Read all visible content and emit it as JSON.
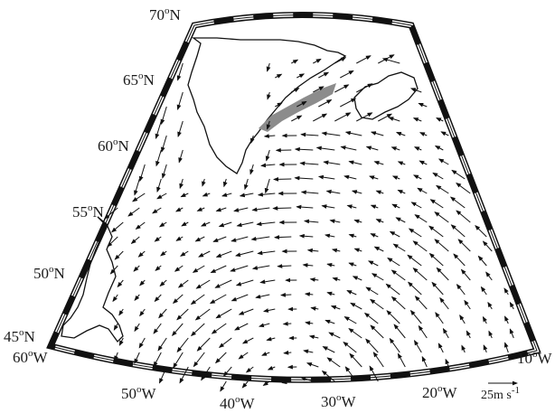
{
  "map": {
    "lat_labels": [
      {
        "deg": "70",
        "sup": "o",
        "hemi": "N"
      },
      {
        "deg": "65",
        "sup": "o",
        "hemi": "N"
      },
      {
        "deg": "60",
        "sup": "o",
        "hemi": "N"
      },
      {
        "deg": "55",
        "sup": "o",
        "hemi": "N"
      },
      {
        "deg": "50",
        "sup": "o",
        "hemi": "N"
      },
      {
        "deg": "45",
        "sup": "o",
        "hemi": "N"
      }
    ],
    "lon_labels": [
      {
        "deg": "60",
        "sup": "o",
        "hemi": "W"
      },
      {
        "deg": "50",
        "sup": "o",
        "hemi": "W"
      },
      {
        "deg": "40",
        "sup": "o",
        "hemi": "W"
      },
      {
        "deg": "30",
        "sup": "o",
        "hemi": "W"
      },
      {
        "deg": "20",
        "sup": "o",
        "hemi": "W"
      },
      {
        "deg": "10",
        "sup": "o",
        "hemi": "W"
      }
    ],
    "extent": {
      "lon": [
        -60,
        -10
      ],
      "lat": [
        45,
        70
      ]
    },
    "vector_field": {
      "description_units": "m/s",
      "shaded_region_color": "#8c8c8c"
    },
    "reference_vector": {
      "magnitude": "25",
      "unit_text": "m s",
      "unit_exp": "-1"
    }
  }
}
